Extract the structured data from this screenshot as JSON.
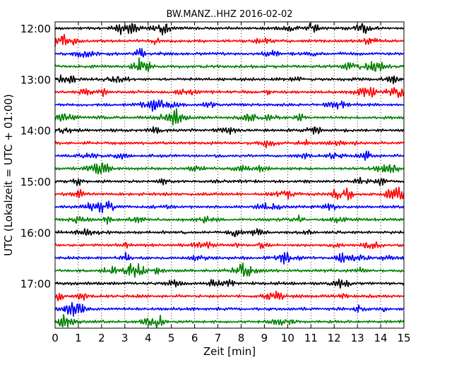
{
  "chart_data": {
    "type": "line",
    "title": "BW.MANZ..HHZ 2016-02-02",
    "xlabel": "Zeit  [min]",
    "ylabel": "UTC (Lokalzeit = UTC + 01:00)",
    "xlim": [
      0,
      15
    ],
    "x_ticks": [
      "0",
      "1",
      "2",
      "3",
      "4",
      "5",
      "6",
      "7",
      "8",
      "9",
      "10",
      "11",
      "12",
      "13",
      "14",
      "15"
    ],
    "y_ticks": [
      "12:00",
      "13:00",
      "14:00",
      "15:00",
      "16:00",
      "17:00"
    ],
    "grid": true,
    "row_count": 24,
    "row_interval_min": 15,
    "first_row": "12:00",
    "line_colors": [
      "#000000",
      "#ff0000",
      "#0000ff",
      "#008000"
    ],
    "traces": [
      {
        "start": "12:00",
        "color": "#000000"
      },
      {
        "start": "12:15",
        "color": "#ff0000"
      },
      {
        "start": "12:30",
        "color": "#0000ff"
      },
      {
        "start": "12:45",
        "color": "#008000"
      },
      {
        "start": "13:00",
        "color": "#000000"
      },
      {
        "start": "13:15",
        "color": "#ff0000"
      },
      {
        "start": "13:30",
        "color": "#0000ff"
      },
      {
        "start": "13:45",
        "color": "#008000"
      },
      {
        "start": "14:00",
        "color": "#000000"
      },
      {
        "start": "14:15",
        "color": "#ff0000"
      },
      {
        "start": "14:30",
        "color": "#0000ff"
      },
      {
        "start": "14:45",
        "color": "#008000"
      },
      {
        "start": "15:00",
        "color": "#000000"
      },
      {
        "start": "15:15",
        "color": "#ff0000"
      },
      {
        "start": "15:30",
        "color": "#0000ff"
      },
      {
        "start": "15:45",
        "color": "#008000"
      },
      {
        "start": "16:00",
        "color": "#000000"
      },
      {
        "start": "16:15",
        "color": "#ff0000"
      },
      {
        "start": "16:30",
        "color": "#0000ff"
      },
      {
        "start": "16:45",
        "color": "#008000"
      },
      {
        "start": "17:00",
        "color": "#000000"
      },
      {
        "start": "17:15",
        "color": "#ff0000"
      },
      {
        "start": "17:30",
        "color": "#0000ff"
      },
      {
        "start": "17:45",
        "color": "#008000"
      }
    ]
  }
}
